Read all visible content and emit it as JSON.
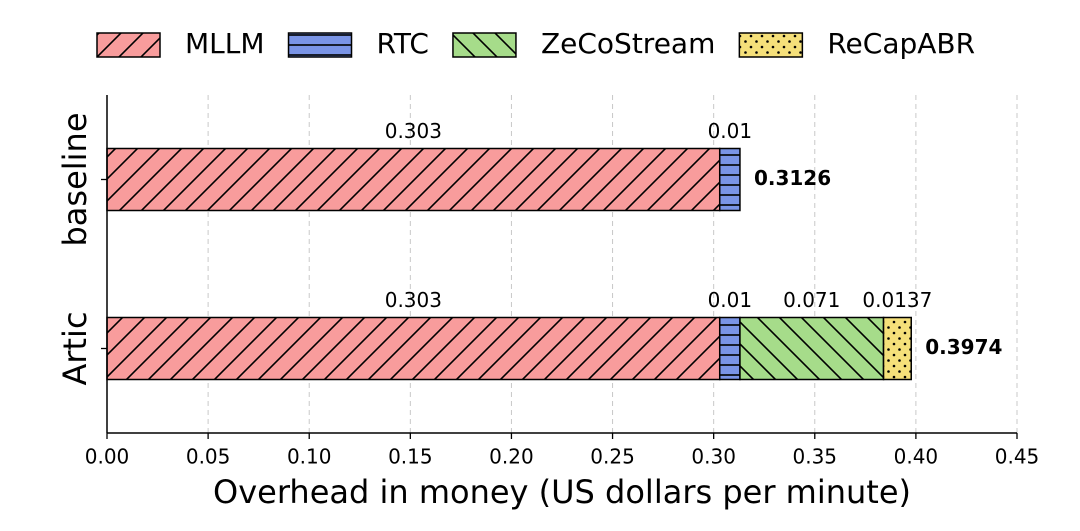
{
  "chart_data": {
    "type": "stacked-barh",
    "categories": [
      "baseline",
      "Artic"
    ],
    "series": [
      {
        "name": "MLLM",
        "color": "#f89c9c",
        "hatch": "//",
        "values": [
          0.303,
          0.303
        ]
      },
      {
        "name": "RTC",
        "color": "#7a94e6",
        "hatch": "-",
        "values": [
          0.01,
          0.01
        ]
      },
      {
        "name": "ZeCoStream",
        "color": "#a6dc8a",
        "hatch": "\\\\",
        "values": [
          null,
          0.071
        ]
      },
      {
        "name": "ReCapABR",
        "color": "#f5e07a",
        "hatch": "..",
        "values": [
          null,
          0.0137
        ]
      }
    ],
    "totals": [
      0.3126,
      0.3974
    ],
    "xlabel": "Overhead in money (US dollars per minute)",
    "xlim": [
      0,
      0.45
    ],
    "xticks": [
      {
        "value": 0,
        "label": "0.00"
      },
      {
        "value": 0.05,
        "label": "0.05"
      },
      {
        "value": 0.1,
        "label": "0.10"
      },
      {
        "value": 0.15,
        "label": "0.15"
      },
      {
        "value": 0.2,
        "label": "0.20"
      },
      {
        "value": 0.25,
        "label": "0.25"
      },
      {
        "value": 0.3,
        "label": "0.30"
      },
      {
        "value": 0.35,
        "label": "0.35"
      },
      {
        "value": 0.4,
        "label": "0.40"
      },
      {
        "value": 0.45,
        "label": "0.45"
      }
    ],
    "grid": true,
    "legend": "top"
  }
}
